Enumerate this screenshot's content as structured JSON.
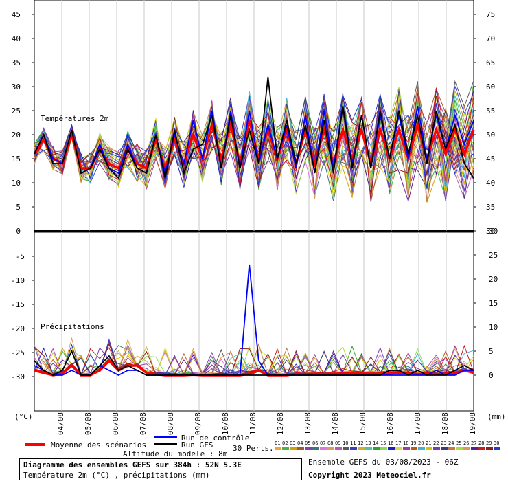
{
  "chart_data": [
    {
      "type": "line",
      "title": "Températures 2m",
      "y_left_ticks": [
        5,
        10,
        15,
        20,
        25,
        30,
        35,
        40,
        45
      ],
      "y_right_ticks": [
        35,
        40,
        45,
        50,
        55,
        60,
        65,
        70,
        75
      ],
      "ylim": [
        0,
        48
      ],
      "x_ticks": [
        "04/08",
        "05/08",
        "06/08",
        "07/08",
        "08/08",
        "09/08",
        "10/08",
        "11/08",
        "12/08",
        "13/08",
        "14/08",
        "15/08",
        "16/08",
        "17/08",
        "18/08",
        "19/08"
      ],
      "series": [
        {
          "name": "Moyenne des scénarios",
          "color": "#ff0000",
          "values": [
            16,
            19,
            15,
            14,
            20,
            13,
            13,
            17,
            14,
            13,
            17,
            14,
            13,
            19,
            13,
            19,
            14,
            20,
            15,
            22,
            15,
            22,
            14,
            23,
            15,
            21,
            15,
            21,
            14,
            21,
            14,
            21,
            14,
            21,
            15,
            21,
            14,
            21,
            15,
            21,
            15,
            22,
            15,
            21,
            16,
            21,
            16,
            21
          ]
        },
        {
          "name": "Run de contrôle",
          "color": "#0000ff",
          "values": [
            16,
            20,
            15,
            14,
            21,
            12,
            13,
            18,
            13,
            12,
            18,
            13,
            12,
            20,
            12,
            20,
            14,
            23,
            15,
            25,
            13,
            25,
            13,
            25,
            14,
            22,
            15,
            22,
            13,
            24,
            12,
            25,
            13,
            26,
            14,
            24,
            13,
            24,
            15,
            24,
            15,
            26,
            15,
            24,
            17,
            24,
            18,
            23
          ]
        },
        {
          "name": "Run GFS",
          "color": "#000000",
          "values": [
            16,
            20,
            14,
            14,
            21,
            12,
            13,
            17,
            13,
            11,
            17,
            13,
            12,
            20,
            11,
            21,
            12,
            17,
            18,
            24,
            13,
            24,
            13,
            21,
            14,
            32,
            15,
            23,
            14,
            22,
            12,
            23,
            12,
            26,
            13,
            24,
            13,
            25,
            15,
            25,
            16,
            24,
            14,
            25,
            17,
            22,
            14,
            11
          ]
        }
      ]
    },
    {
      "type": "line",
      "title": "Précipitations",
      "y_left_ticks": [
        -5,
        -10,
        -15,
        -20,
        -25,
        -30
      ],
      "y_right_ticks": [
        0,
        5,
        10,
        15,
        20,
        25,
        30
      ],
      "ylim": [
        -2,
        30
      ],
      "unit_left": "(°C)",
      "unit_right": "(mm)",
      "series": [
        {
          "name": "Moyenne des scénarios",
          "color": "#ff0000",
          "values": [
            1,
            0.5,
            0,
            0.3,
            2,
            0,
            0,
            1,
            3,
            1,
            2,
            2,
            0.5,
            0.2,
            0,
            0,
            0,
            0.1,
            0,
            0,
            0,
            0,
            0,
            0.3,
            1,
            0,
            0,
            0,
            0.3,
            0.2,
            0.3,
            0.2,
            0.3,
            0.3,
            0.4,
            0.3,
            0.3,
            0.3,
            0.3,
            0.5,
            0.5,
            0.2,
            0.4,
            0.2,
            0.3,
            0.4,
            1,
            0.5
          ]
        },
        {
          "name": "Run de contrôle",
          "color": "#0000ff",
          "values": [
            2,
            1,
            0,
            0,
            1,
            0,
            0,
            2,
            1,
            0,
            1,
            1,
            0,
            0,
            0,
            0,
            0,
            0,
            0,
            0,
            0,
            0,
            0,
            23,
            3,
            0,
            0,
            0,
            0,
            0,
            0,
            0,
            0,
            0,
            0,
            0,
            0,
            0,
            0,
            0,
            0,
            0,
            0,
            1,
            0,
            0,
            1,
            1
          ]
        },
        {
          "name": "Run GFS",
          "color": "#000000",
          "values": [
            3,
            1,
            0,
            1,
            5,
            0,
            0,
            2,
            4,
            1,
            2,
            1,
            0,
            0,
            0,
            0,
            0,
            0,
            0,
            0,
            0,
            0,
            0,
            0,
            0,
            0,
            0,
            0,
            0,
            0,
            0,
            0,
            0,
            0,
            0,
            0,
            0,
            0,
            1,
            1,
            0,
            1,
            0,
            0,
            0,
            1,
            2,
            1
          ]
        }
      ]
    }
  ],
  "legend": {
    "mean_label": "Moyenne des scénarios",
    "control_label": "Run de contrôle",
    "gfs_label": "Run GFS",
    "perts_label": "30 Perts.",
    "altitude_label": "Altitude du modele : 8m",
    "member_numbers": [
      "01",
      "02",
      "03",
      "04",
      "05",
      "06",
      "07",
      "08",
      "09",
      "10",
      "11",
      "12",
      "13",
      "14",
      "15",
      "16",
      "17",
      "18",
      "19",
      "20",
      "21",
      "22",
      "23",
      "24",
      "25",
      "26",
      "27",
      "28",
      "29",
      "30"
    ],
    "member_colors": [
      "#e6a53c",
      "#46b446",
      "#d2a000",
      "#a05a32",
      "#8c3cb4",
      "#3c7878",
      "#dc78dc",
      "#e09a5a",
      "#b45ab4",
      "#5a5a5a",
      "#3c3cc8",
      "#c8b432",
      "#46c8aa",
      "#32a032",
      "#8cdc5a",
      "#1e1ec8",
      "#dcdc3c",
      "#a03ca0",
      "#be5a1e",
      "#3cb4dc",
      "#d2c800",
      "#783cb4",
      "#3c3c78",
      "#c87846",
      "#aadc3c",
      "#dc9664",
      "#5a1e96",
      "#c81e1e",
      "#8c1e1e",
      "#1e3cd2"
    ]
  },
  "footer": {
    "title": "Diagramme des ensembles GEFS sur 384h : 52N 5.3E",
    "subtitle": "Température 2m (°C) , précipitations (mm)",
    "run_info": "Ensemble GEFS du 03/08/2023 - 06Z",
    "copyright": "Copyright 2023 Meteociel.fr"
  }
}
